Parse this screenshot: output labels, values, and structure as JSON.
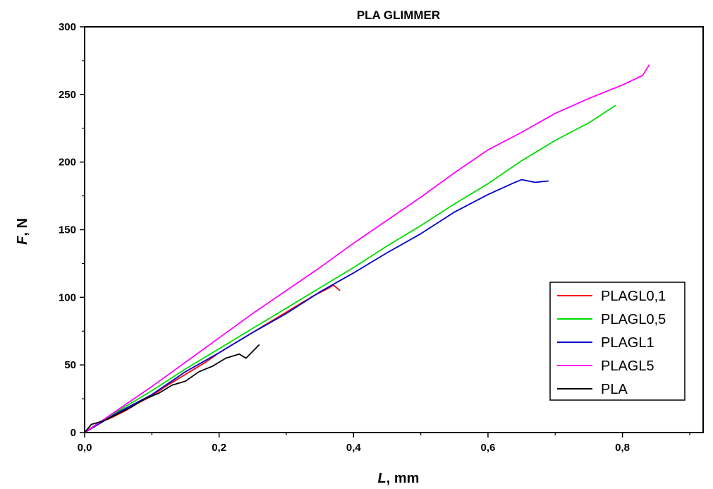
{
  "chart_data": {
    "type": "line",
    "title": "PLA GLIMMER",
    "xlabel": {
      "symbol": "L",
      "unit": ", mm"
    },
    "ylabel": {
      "symbol": "F",
      "unit": ", N"
    },
    "xlim": [
      0,
      0.92
    ],
    "ylim": [
      0,
      300
    ],
    "xticks": [
      0.0,
      0.2,
      0.4,
      0.6,
      0.8
    ],
    "xtick_labels": [
      "0,0",
      "0,2",
      "0,4",
      "0,6",
      "0,8"
    ],
    "yticks": [
      0,
      50,
      100,
      150,
      200,
      250,
      300
    ],
    "ytick_labels": [
      "0",
      "50",
      "100",
      "150",
      "200",
      "250",
      "300"
    ],
    "grid": false,
    "legend_position": "right",
    "series": [
      {
        "name": "PLAGL0,1",
        "color": "#ff0000",
        "x": [
          0,
          0.02,
          0.04,
          0.06,
          0.08,
          0.1,
          0.12,
          0.14,
          0.16,
          0.18,
          0.2,
          0.22,
          0.24,
          0.26,
          0.28,
          0.3,
          0.32,
          0.34,
          0.36,
          0.37,
          0.38
        ],
        "y": [
          0,
          7,
          11,
          16,
          22,
          27,
          34,
          40,
          46,
          52,
          59,
          65,
          71,
          77,
          83,
          89,
          95,
          101,
          106,
          109,
          105
        ]
      },
      {
        "name": "PLAGL0,5",
        "color": "#00dd00",
        "x": [
          0,
          0.05,
          0.1,
          0.15,
          0.2,
          0.25,
          0.3,
          0.35,
          0.4,
          0.45,
          0.5,
          0.55,
          0.6,
          0.65,
          0.7,
          0.75,
          0.79
        ],
        "y": [
          0,
          16,
          31,
          47,
          62,
          77,
          92,
          107,
          122,
          138,
          153,
          169,
          184,
          201,
          216,
          229,
          242
        ]
      },
      {
        "name": "PLAGL1",
        "color": "#0000cc",
        "x": [
          0,
          0.05,
          0.1,
          0.15,
          0.2,
          0.25,
          0.3,
          0.35,
          0.4,
          0.45,
          0.5,
          0.55,
          0.6,
          0.64,
          0.65,
          0.67,
          0.69
        ],
        "y": [
          0,
          15,
          28,
          45,
          59,
          74,
          88,
          104,
          118,
          133,
          147,
          163,
          176,
          185,
          187,
          185,
          186
        ]
      },
      {
        "name": "PLAGL5",
        "color": "#ff00ff",
        "x": [
          0,
          0.05,
          0.1,
          0.15,
          0.2,
          0.25,
          0.3,
          0.35,
          0.4,
          0.45,
          0.5,
          0.55,
          0.6,
          0.65,
          0.7,
          0.75,
          0.8,
          0.83,
          0.84
        ],
        "y": [
          0,
          17,
          34,
          52,
          70,
          88,
          105,
          122,
          140,
          157,
          174,
          192,
          209,
          222,
          236,
          247,
          257,
          264,
          272
        ]
      },
      {
        "name": "PLA",
        "color": "#000000",
        "x": [
          0,
          0.01,
          0.03,
          0.05,
          0.07,
          0.09,
          0.11,
          0.13,
          0.15,
          0.17,
          0.19,
          0.21,
          0.23,
          0.24,
          0.26
        ],
        "y": [
          0,
          6,
          9,
          14,
          19,
          25,
          29,
          35,
          38,
          45,
          49,
          55,
          58,
          55,
          65
        ]
      }
    ]
  }
}
